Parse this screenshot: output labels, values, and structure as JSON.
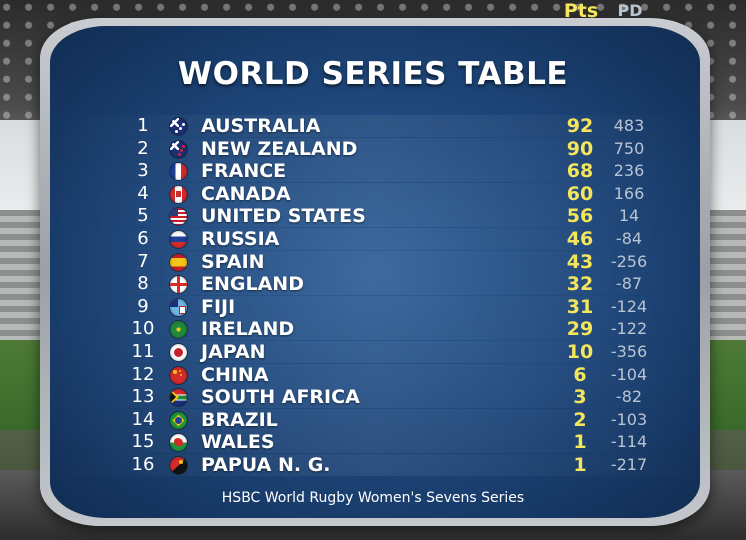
{
  "title": "WORLD SERIES TABLE",
  "columns": {
    "pts": "Pts",
    "pd": "PD"
  },
  "rows": [
    {
      "rank": "1",
      "team": "AUSTRALIA",
      "pts": "92",
      "pd": "483",
      "flag": "australia-flag-icon"
    },
    {
      "rank": "2",
      "team": "NEW ZEALAND",
      "pts": "90",
      "pd": "750",
      "flag": "new-zealand-flag-icon"
    },
    {
      "rank": "3",
      "team": "FRANCE",
      "pts": "68",
      "pd": "236",
      "flag": "france-flag-icon"
    },
    {
      "rank": "4",
      "team": "CANADA",
      "pts": "60",
      "pd": "166",
      "flag": "canada-flag-icon"
    },
    {
      "rank": "5",
      "team": "UNITED STATES",
      "pts": "56",
      "pd": "14",
      "flag": "united-states-flag-icon"
    },
    {
      "rank": "6",
      "team": "RUSSIA",
      "pts": "46",
      "pd": "-84",
      "flag": "russia-flag-icon"
    },
    {
      "rank": "7",
      "team": "SPAIN",
      "pts": "43",
      "pd": "-256",
      "flag": "spain-flag-icon"
    },
    {
      "rank": "8",
      "team": "ENGLAND",
      "pts": "32",
      "pd": "-87",
      "flag": "england-flag-icon"
    },
    {
      "rank": "9",
      "team": "FIJI",
      "pts": "31",
      "pd": "-124",
      "flag": "fiji-flag-icon"
    },
    {
      "rank": "10",
      "team": "IRELAND",
      "pts": "29",
      "pd": "-122",
      "flag": "ireland-flag-icon"
    },
    {
      "rank": "11",
      "team": "JAPAN",
      "pts": "10",
      "pd": "-356",
      "flag": "japan-flag-icon"
    },
    {
      "rank": "12",
      "team": "CHINA",
      "pts": "6",
      "pd": "-104",
      "flag": "china-flag-icon"
    },
    {
      "rank": "13",
      "team": "SOUTH AFRICA",
      "pts": "3",
      "pd": "-82",
      "flag": "south-africa-flag-icon"
    },
    {
      "rank": "14",
      "team": "BRAZIL",
      "pts": "2",
      "pd": "-103",
      "flag": "brazil-flag-icon"
    },
    {
      "rank": "15",
      "team": "WALES",
      "pts": "1",
      "pd": "-114",
      "flag": "wales-flag-icon"
    },
    {
      "rank": "16",
      "team": "PAPUA N. G.",
      "pts": "1",
      "pd": "-217",
      "flag": "papua-new-guinea-flag-icon"
    }
  ],
  "footer": "HSBC World Rugby Women's Sevens Series",
  "colors": {
    "points": "#f3e55c",
    "board": "#1d4477",
    "text": "#ffffff",
    "pd": "#b9c4d2"
  }
}
